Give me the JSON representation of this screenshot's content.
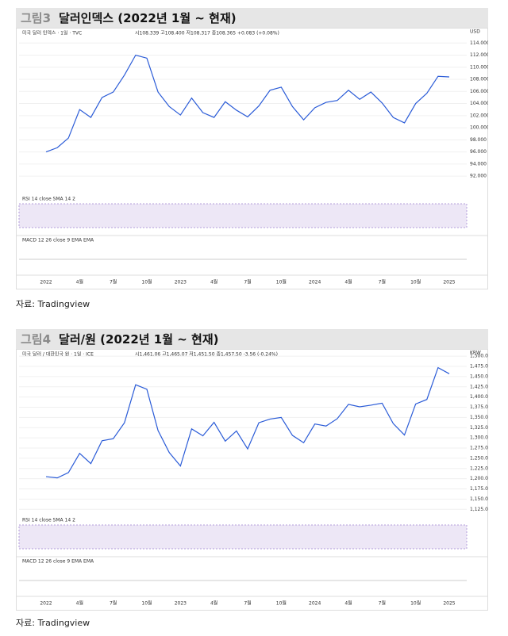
{
  "figures": [
    {
      "label": "그림3",
      "title": "달러인덱스 (2022년 1월 ~ 현재)",
      "source": "자료: Tradingview",
      "chart": {
        "type": "line",
        "symbol": "미국 달러 인덱스 · 1일 · TVC",
        "ohlc": "시108.339 고108.400 저108.317 종108.365 +0.083 (+0.08%)",
        "rsi_title": "RSI 14 close SMA 14 2",
        "macd_title": "MACD 12 26 close 9 EMA EMA",
        "currency": "USD",
        "color": "#2a5bd7",
        "values": [
          96.0,
          96.7,
          98.3,
          103.0,
          101.7,
          105.0,
          105.9,
          108.7,
          112.0,
          111.5,
          105.9,
          103.5,
          102.1,
          104.9,
          102.5,
          101.7,
          104.3,
          102.9,
          101.8,
          103.6,
          106.2,
          106.7,
          103.5,
          101.3,
          103.3,
          104.2,
          104.5,
          106.2,
          104.7,
          105.9,
          104.1,
          101.7,
          100.8,
          104.0,
          105.7,
          108.5,
          108.4
        ],
        "xlabels": [
          "2022",
          "4월",
          "7월",
          "10월",
          "2023",
          "4월",
          "7월",
          "10월",
          "2024",
          "4월",
          "7월",
          "10월",
          "2025"
        ],
        "ylim": [
          89,
          116
        ],
        "yticks": [
          {
            "value": 92,
            "label": "92.000"
          },
          {
            "value": 94,
            "label": "94.000"
          },
          {
            "value": 96,
            "label": "96.000"
          },
          {
            "value": 98,
            "label": "98.000"
          },
          {
            "value": 100,
            "label": "100.000"
          },
          {
            "value": 102,
            "label": "102.000"
          },
          {
            "value": 104,
            "label": "104.000"
          },
          {
            "value": 106,
            "label": "106.000"
          },
          {
            "value": 108,
            "label": "108.000"
          },
          {
            "value": 110,
            "label": "110.000"
          },
          {
            "value": 112,
            "label": "112.000"
          },
          {
            "value": 114,
            "label": "114.000"
          }
        ]
      }
    },
    {
      "label": "그림4",
      "title": "달러/원 (2022년 1월 ~ 현재)",
      "source": "자료: Tradingview",
      "chart": {
        "type": "line",
        "symbol": "미국 달러 / 대한민국 원 · 1일 · ICE",
        "ohlc": "시1,461.06 고1,465.07 저1,451.50 종1,457.50 -3.56 (-0.24%)",
        "rsi_title": "RSI 14 close SMA 14 2",
        "macd_title": "MACD 12 26 close 9 EMA EMA",
        "currency": "KRW",
        "color": "#2a5bd7",
        "values": [
          1205,
          1202,
          1215,
          1262,
          1237,
          1293,
          1298,
          1337,
          1430,
          1419,
          1318,
          1264,
          1231,
          1322,
          1305,
          1338,
          1292,
          1317,
          1273,
          1337,
          1346,
          1350,
          1306,
          1288,
          1334,
          1329,
          1347,
          1382,
          1376,
          1380,
          1385,
          1335,
          1307,
          1383,
          1394,
          1472,
          1457
        ],
        "xlabels": [
          "2022",
          "4월",
          "7월",
          "10월",
          "2023",
          "4월",
          "7월",
          "10월",
          "2024",
          "4월",
          "7월",
          "10월",
          "2025"
        ],
        "ylim": [
          1110,
          1510
        ],
        "yticks": [
          {
            "value": 1125,
            "label": "1,125.00"
          },
          {
            "value": 1150,
            "label": "1,150.00"
          },
          {
            "value": 1175,
            "label": "1,175.00"
          },
          {
            "value": 1200,
            "label": "1,200.00"
          },
          {
            "value": 1225,
            "label": "1,225.00"
          },
          {
            "value": 1250,
            "label": "1,250.00"
          },
          {
            "value": 1275,
            "label": "1,275.00"
          },
          {
            "value": 1300,
            "label": "1,300.00"
          },
          {
            "value": 1325,
            "label": "1,325.00"
          },
          {
            "value": 1350,
            "label": "1,350.00"
          },
          {
            "value": 1375,
            "label": "1,375.00"
          },
          {
            "value": 1400,
            "label": "1,400.00"
          },
          {
            "value": 1425,
            "label": "1,425.00"
          },
          {
            "value": 1450,
            "label": "1,450.00"
          },
          {
            "value": 1475,
            "label": "1,475.00"
          },
          {
            "value": 1500,
            "label": "1,500.00"
          }
        ]
      }
    }
  ]
}
